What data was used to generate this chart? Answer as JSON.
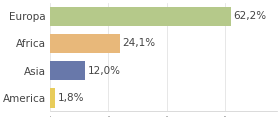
{
  "categories": [
    "Europa",
    "Africa",
    "Asia",
    "America"
  ],
  "values": [
    62.2,
    24.1,
    12.0,
    1.8
  ],
  "labels": [
    "62,2%",
    "24,1%",
    "12,0%",
    "1,8%"
  ],
  "bar_colors": [
    "#b5c98a",
    "#e8b87a",
    "#6878aa",
    "#e8cc5a"
  ],
  "background_color": "#ffffff",
  "xlim": [
    0,
    78
  ],
  "bar_height": 0.72,
  "label_fontsize": 7.5,
  "ytick_fontsize": 7.5
}
